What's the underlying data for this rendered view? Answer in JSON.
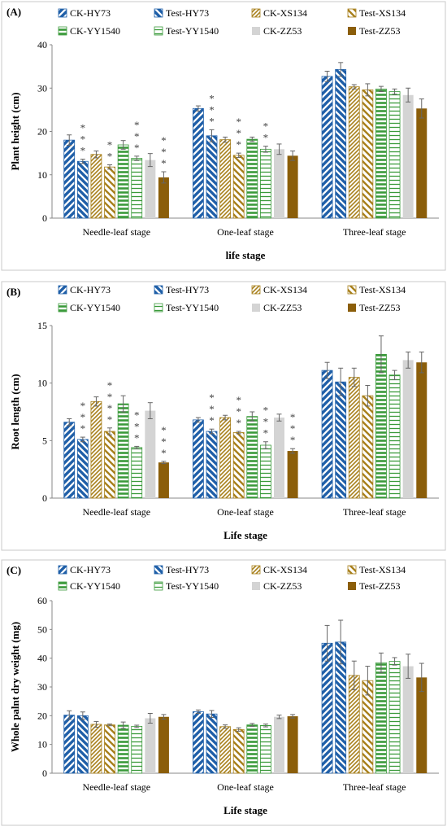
{
  "colors": {
    "HY73": "#1f5fa8",
    "XS134": "#a8801c",
    "YY1540": "#3a9a3a",
    "ZZ53_ck": "#d4d4d4",
    "ZZ53_test": "#8b5e0a",
    "frame": "#c8c8c8",
    "axis": "#888888"
  },
  "chart_data": [
    {
      "panel_label": "(A)",
      "type": "bar",
      "ylabel": "Plant height (cm)",
      "xlabel": "life stage",
      "ylim": [
        0,
        40
      ],
      "yticks": [
        0,
        10,
        20,
        30,
        40
      ],
      "categories": [
        "Needle-leaf stage",
        "One-leaf stage",
        "Three-leaf stage"
      ],
      "legend": [
        "CK-HY73",
        "Test-HY73",
        "CK-XS134",
        "Test-XS134",
        "CK-YY1540",
        "Test-YY1540",
        "CK-ZZ53",
        "Test-ZZ53"
      ],
      "series": [
        {
          "name": "CK-HY73",
          "values": [
            18.0,
            25.3,
            32.7
          ],
          "errors": [
            1.2,
            0.6,
            1.2
          ]
        },
        {
          "name": "Test-HY73",
          "values": [
            13.1,
            19.0,
            34.3
          ],
          "errors": [
            0.5,
            1.4,
            1.6
          ]
        },
        {
          "name": "CK-XS134",
          "values": [
            14.7,
            18.1,
            30.3
          ],
          "errors": [
            0.8,
            0.6,
            0.5
          ]
        },
        {
          "name": "Test-XS134",
          "values": [
            11.8,
            14.5,
            29.6
          ],
          "errors": [
            0.5,
            0.5,
            1.4
          ]
        },
        {
          "name": "CK-YY1540",
          "values": [
            16.9,
            18.2,
            29.8
          ],
          "errors": [
            1.0,
            0.5,
            0.6
          ]
        },
        {
          "name": "Test-YY1540",
          "values": [
            13.8,
            15.9,
            29.2
          ],
          "errors": [
            0.5,
            0.7,
            0.6
          ]
        },
        {
          "name": "CK-ZZ53",
          "values": [
            13.4,
            15.9,
            28.4
          ],
          "errors": [
            1.5,
            1.2,
            1.6
          ]
        },
        {
          "name": "Test-ZZ53",
          "values": [
            9.4,
            14.4,
            25.3
          ],
          "errors": [
            1.3,
            1.1,
            2.2
          ]
        }
      ],
      "significance": [
        {
          "series": 1,
          "category": 0,
          "text": "***"
        },
        {
          "series": 3,
          "category": 0,
          "text": "**"
        },
        {
          "series": 5,
          "category": 0,
          "text": "***"
        },
        {
          "series": 7,
          "category": 0,
          "text": "***"
        },
        {
          "series": 1,
          "category": 1,
          "text": "***"
        },
        {
          "series": 3,
          "category": 1,
          "text": "***"
        },
        {
          "series": 5,
          "category": 1,
          "text": "**"
        }
      ]
    },
    {
      "panel_label": "(B)",
      "type": "bar",
      "ylabel": "Root length (cm)",
      "xlabel": "Life stage",
      "ylim": [
        0,
        15
      ],
      "yticks": [
        0,
        5,
        10,
        15
      ],
      "categories": [
        "Needle-leaf stage",
        "One-leaf stage",
        "Three-leaf stage"
      ],
      "legend": [
        "CK-HY73",
        "Test-HY73",
        "CK-XS134",
        "Test-XS134",
        "CK-YY1540",
        "Test-YY1540",
        "CK-ZZ53",
        "Test-ZZ53"
      ],
      "series": [
        {
          "name": "CK-HY73",
          "values": [
            6.6,
            6.8,
            11.1
          ],
          "errors": [
            0.3,
            0.2,
            0.7
          ]
        },
        {
          "name": "Test-HY73",
          "values": [
            5.1,
            5.8,
            10.1
          ],
          "errors": [
            0.2,
            0.2,
            1.2
          ]
        },
        {
          "name": "CK-XS134",
          "values": [
            8.4,
            7.0,
            10.5
          ],
          "errors": [
            0.4,
            0.2,
            0.8
          ]
        },
        {
          "name": "Test-XS134",
          "values": [
            5.8,
            5.7,
            8.9
          ],
          "errors": [
            0.3,
            0.1,
            0.9
          ]
        },
        {
          "name": "CK-YY1540",
          "values": [
            8.2,
            7.1,
            12.5
          ],
          "errors": [
            0.7,
            0.4,
            1.6
          ]
        },
        {
          "name": "Test-YY1540",
          "values": [
            4.4,
            4.6,
            10.7
          ],
          "errors": [
            0.1,
            0.3,
            0.4
          ]
        },
        {
          "name": "CK-ZZ53",
          "values": [
            7.6,
            7.0,
            12.0
          ],
          "errors": [
            0.7,
            0.3,
            0.7
          ]
        },
        {
          "name": "Test-ZZ53",
          "values": [
            3.1,
            4.1,
            11.8
          ],
          "errors": [
            0.1,
            0.2,
            0.9
          ]
        }
      ],
      "significance": [
        {
          "series": 1,
          "category": 0,
          "text": "***"
        },
        {
          "series": 3,
          "category": 0,
          "text": "****"
        },
        {
          "series": 5,
          "category": 0,
          "text": "***"
        },
        {
          "series": 7,
          "category": 0,
          "text": "***"
        },
        {
          "series": 1,
          "category": 1,
          "text": "***"
        },
        {
          "series": 3,
          "category": 1,
          "text": "***"
        },
        {
          "series": 5,
          "category": 1,
          "text": "***"
        },
        {
          "series": 7,
          "category": 1,
          "text": "***"
        }
      ]
    },
    {
      "panel_label": "(C)",
      "type": "bar",
      "ylabel": "Whole palnt dry weight  (mg)",
      "xlabel": "Life stage",
      "ylim": [
        0,
        60
      ],
      "yticks": [
        0,
        10,
        20,
        30,
        40,
        50,
        60
      ],
      "categories": [
        "Needle-leaf stage",
        "One-leaf stage",
        "Three-leaf stage"
      ],
      "legend": [
        "CK-HY73",
        "Test-HY73",
        "CK-XS134",
        "Test-XS134",
        "CK-YY1540",
        "Test-YY1540",
        "CK-ZZ53",
        "Test-ZZ53"
      ],
      "series": [
        {
          "name": "CK-HY73",
          "values": [
            20.2,
            21.4,
            45.2
          ],
          "errors": [
            1.5,
            0.6,
            6.2
          ]
        },
        {
          "name": "Test-HY73",
          "values": [
            20.0,
            20.6,
            45.6
          ],
          "errors": [
            1.3,
            1.2,
            7.6
          ]
        },
        {
          "name": "CK-XS134",
          "values": [
            17.0,
            16.2,
            34.0
          ],
          "errors": [
            1.0,
            0.6,
            5.0
          ]
        },
        {
          "name": "Test-XS134",
          "values": [
            16.8,
            15.2,
            32.2
          ],
          "errors": [
            0.3,
            0.6,
            5.0
          ]
        },
        {
          "name": "CK-YY1540",
          "values": [
            16.7,
            16.8,
            38.4
          ],
          "errors": [
            1.1,
            0.5,
            3.4
          ]
        },
        {
          "name": "Test-YY1540",
          "values": [
            16.3,
            16.6,
            38.9
          ],
          "errors": [
            0.4,
            0.5,
            1.3
          ]
        },
        {
          "name": "CK-ZZ53",
          "values": [
            19.1,
            19.6,
            37.2
          ],
          "errors": [
            1.7,
            0.6,
            4.2
          ]
        },
        {
          "name": "Test-ZZ53",
          "values": [
            19.6,
            19.8,
            33.3
          ],
          "errors": [
            0.8,
            0.6,
            4.9
          ]
        }
      ],
      "significance": []
    }
  ]
}
